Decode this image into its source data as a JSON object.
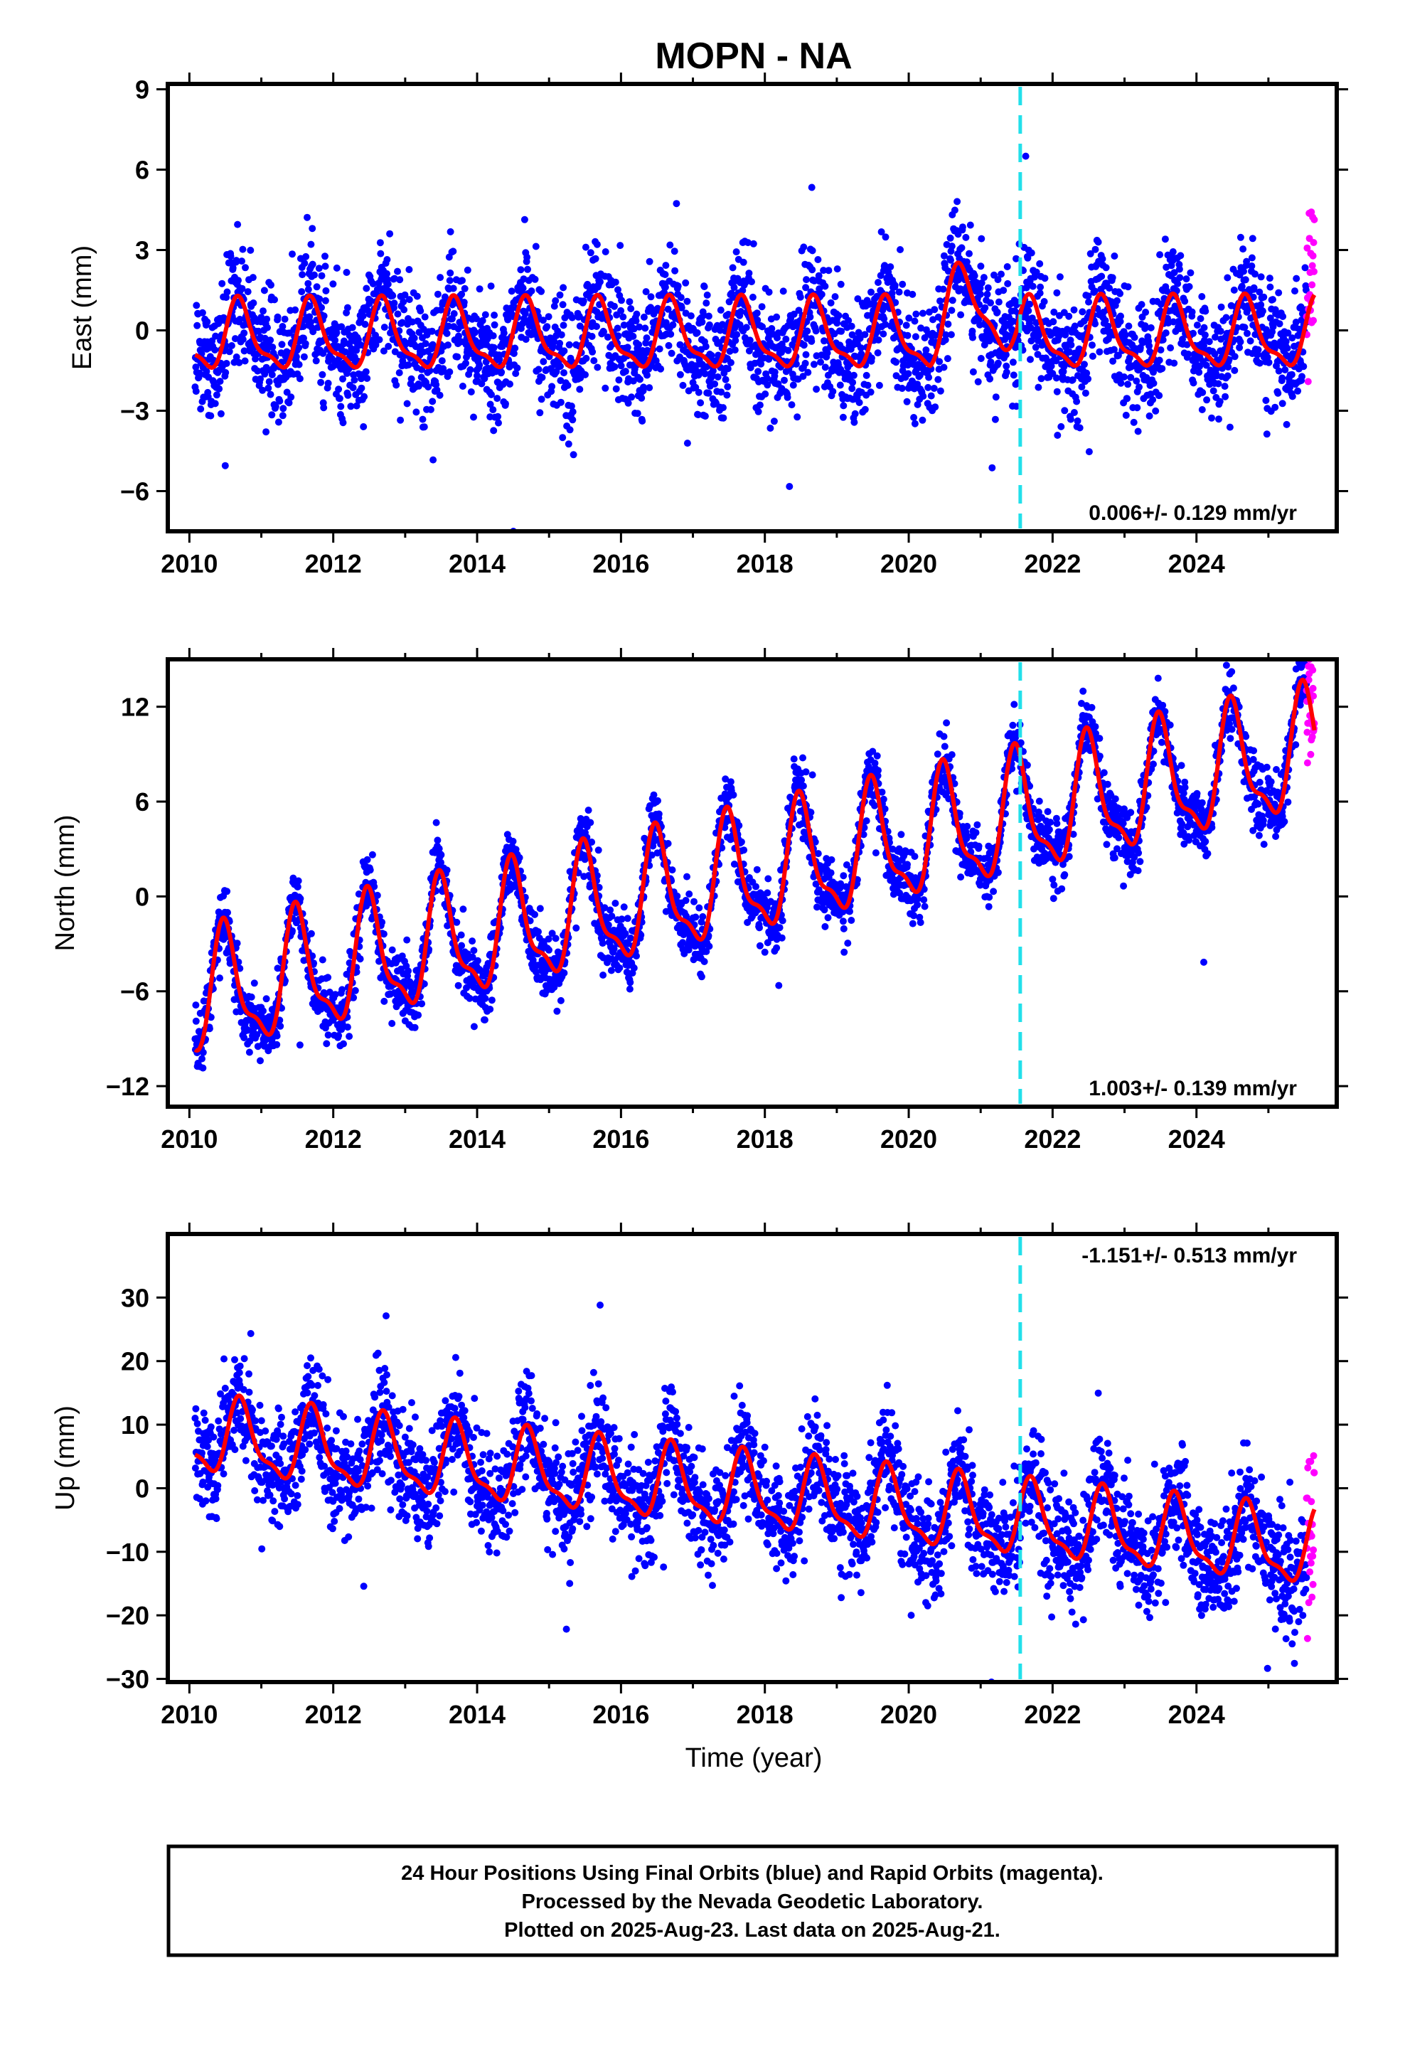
{
  "colors": {
    "final_orbits": "#0000ff",
    "rapid_orbits": "#ff00ff",
    "fit": "#ff0000",
    "break_line": "#22e0ea"
  },
  "footer": {
    "line1": "24 Hour Positions Using Final Orbits (blue) and Rapid Orbits (magenta).",
    "line2": "Processed by the Nevada Geodetic Laboratory.",
    "line3": "Plotted on 2025-Aug-23. Last data on 2025-Aug-21."
  },
  "chart_data": {
    "type": "scatter",
    "title": "MOPN - NA",
    "xlabel": "Time (year)",
    "xlim": [
      2009.7,
      2025.95
    ],
    "xticks": [
      2010,
      2012,
      2014,
      2016,
      2018,
      2020,
      2022,
      2024
    ],
    "x_tick_labels": [
      "2010",
      "2012",
      "2014",
      "2016",
      "2018",
      "2020",
      "2022",
      "2024"
    ],
    "data_start": 2010.08,
    "final_end": 2025.53,
    "rapid_end": 2025.64,
    "break_epochs": [
      2021.55
    ],
    "grid": false,
    "panels": [
      {
        "name": "east",
        "ylabel": "East (mm)",
        "ylim": [
          -7.5,
          9.2
        ],
        "yticks": [
          -6,
          -3,
          0,
          3,
          6,
          9
        ],
        "y_tick_labels": [
          "−6",
          "−3",
          "0",
          "3",
          "6",
          "9"
        ],
        "rate_text": "0.006+/- 0.129 mm/yr",
        "rate_position": "bottom-right",
        "rate": 0.006,
        "rate_sigma": 0.129,
        "amplitude": 1.2,
        "phase_peak": 0.7,
        "offset_mm": -0.3,
        "seasonal_bump": [
          2020.3,
          2021.5,
          1.4
        ],
        "scatter_sigma": 1.1,
        "series": [
          {
            "name": "Final Orbits (blue)",
            "color": "#0000ff"
          },
          {
            "name": "Rapid Orbits (magenta)",
            "color": "#ff00ff"
          }
        ]
      },
      {
        "name": "north",
        "ylabel": "North (mm)",
        "ylim": [
          -13.3,
          15
        ],
        "yticks": [
          -12,
          -6,
          0,
          6,
          12
        ],
        "y_tick_labels": [
          "−12",
          "−6",
          "0",
          "6",
          "12"
        ],
        "rate_text": "1.003+/- 0.139 mm/yr",
        "rate_position": "bottom-right",
        "rate": 1.003,
        "rate_sigma": 0.139,
        "amplitude": 3.6,
        "phase_peak": 0.5,
        "offset_mm": -6.5,
        "seasonal_bump": [
          0,
          0,
          0
        ],
        "scatter_sigma": 1.0,
        "series": [
          {
            "name": "Final Orbits (blue)",
            "color": "#0000ff"
          },
          {
            "name": "Rapid Orbits (magenta)",
            "color": "#ff00ff"
          }
        ]
      },
      {
        "name": "up",
        "ylabel": "Up (mm)",
        "ylim": [
          -30.5,
          40
        ],
        "yticks": [
          -30,
          -20,
          -10,
          0,
          10,
          20,
          30
        ],
        "y_tick_labels": [
          "−30",
          "−20",
          "−10",
          "0",
          "10",
          "20",
          "30"
        ],
        "rate_text": "-1.151+/- 0.513 mm/yr",
        "rate_position": "top-right",
        "rate": -1.151,
        "rate_sigma": 0.513,
        "amplitude": 5.5,
        "phase_peak": 0.72,
        "offset_mm": 8,
        "seasonal_bump": [
          0,
          0,
          0
        ],
        "scatter_sigma": 4.2,
        "series": [
          {
            "name": "Final Orbits (blue)",
            "color": "#0000ff"
          },
          {
            "name": "Rapid Orbits (magenta)",
            "color": "#ff00ff"
          }
        ]
      }
    ]
  }
}
